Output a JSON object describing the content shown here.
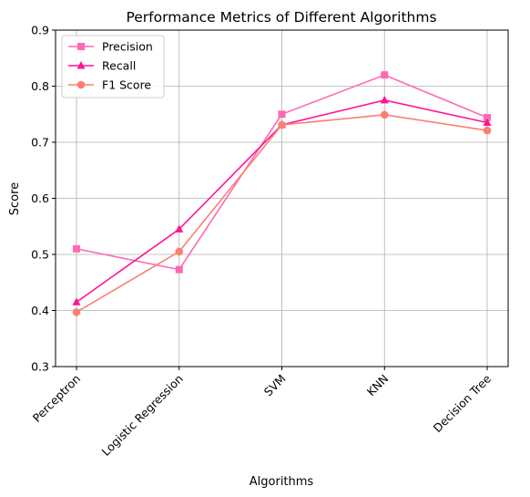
{
  "chart_data": {
    "type": "line",
    "title": "Performance Metrics of Different Algorithms",
    "xlabel": "Algorithms",
    "ylabel": "Score",
    "categories": [
      "Perceptron",
      "Logistic Regression",
      "SVM",
      "KNN",
      "Decision Tree"
    ],
    "ylim": [
      0.3,
      0.9
    ],
    "yticks": [
      "0.3",
      "0.4",
      "0.5",
      "0.6",
      "0.7",
      "0.8",
      "0.9"
    ],
    "grid": true,
    "legend_position": "top-left",
    "series": [
      {
        "name": "Precision",
        "color": "#ff69b4",
        "marker": "square",
        "values": [
          0.51,
          0.473,
          0.75,
          0.82,
          0.744
        ]
      },
      {
        "name": "Recall",
        "color": "#ff1493",
        "marker": "triangle",
        "values": [
          0.415,
          0.545,
          0.731,
          0.775,
          0.735
        ]
      },
      {
        "name": "F1 Score",
        "color": "#fa8072",
        "marker": "circle",
        "values": [
          0.397,
          0.505,
          0.731,
          0.749,
          0.721
        ]
      }
    ]
  }
}
